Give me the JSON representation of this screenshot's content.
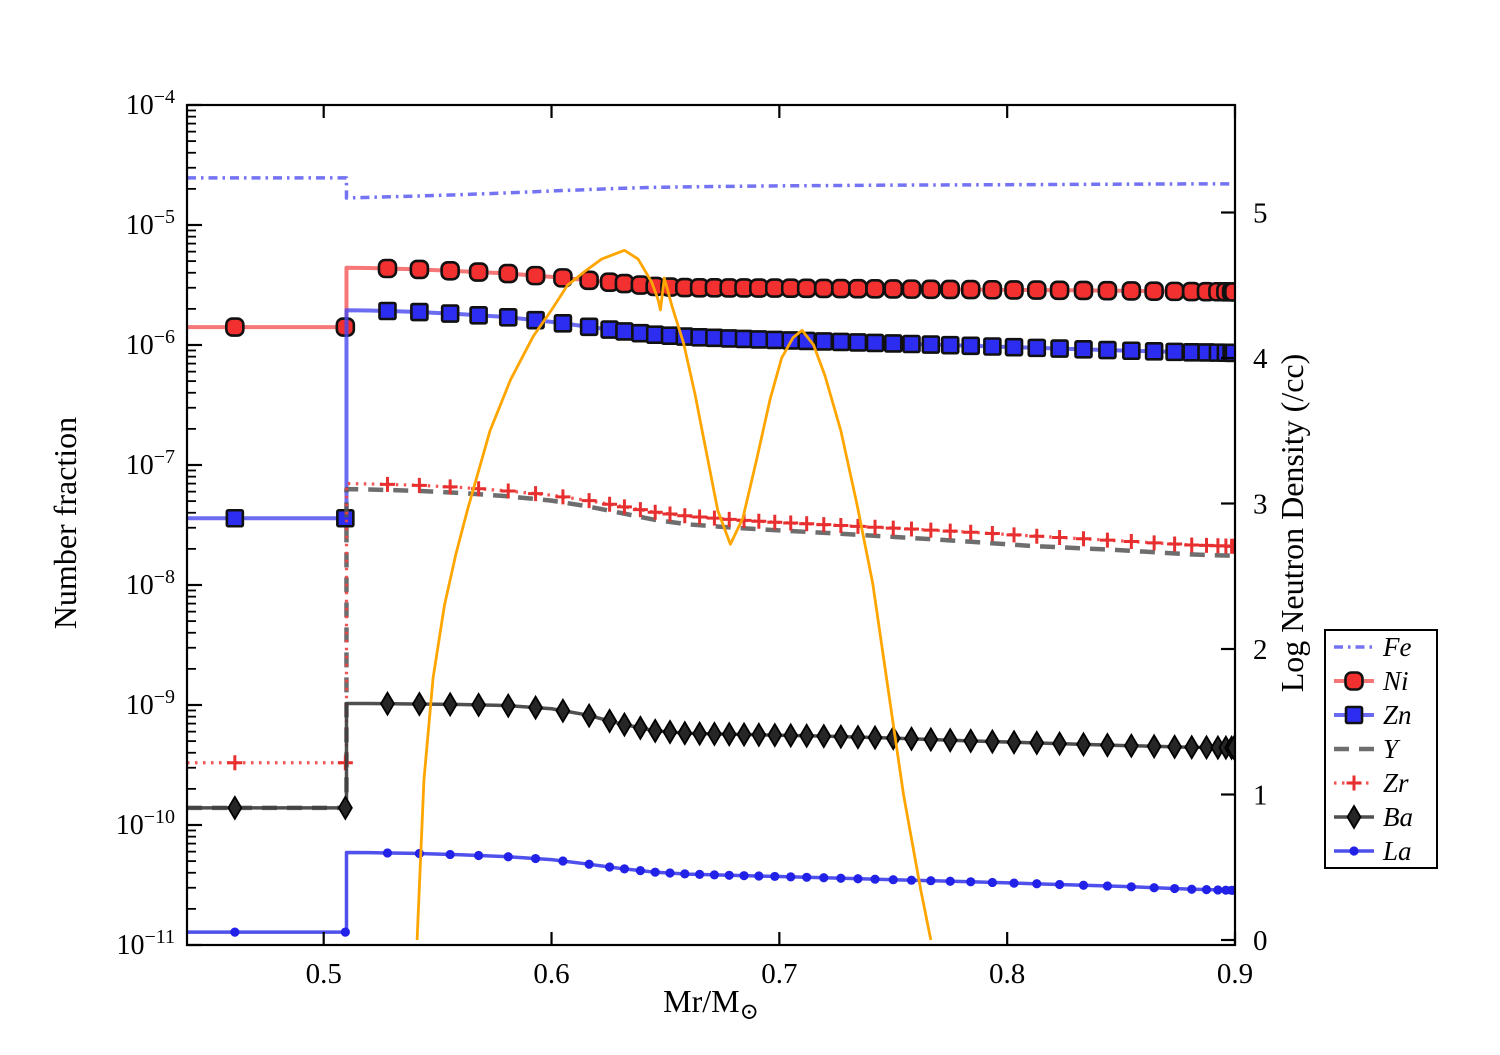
{
  "figure": {
    "background": "#ffffff"
  },
  "chart_data": {
    "type": "line",
    "title": "",
    "x_axis": {
      "label": "Mr/M⊙",
      "label_main": "Mr/M",
      "label_sub": "⊙",
      "min": 0.44,
      "max": 0.9,
      "ticks": [
        0.5,
        0.6,
        0.7,
        0.8,
        0.9
      ],
      "tick_labels": [
        "0.5",
        "0.6",
        "0.7",
        "0.8",
        "0.9"
      ],
      "color": "#1616d1"
    },
    "y_axis_left": {
      "label": "Number fraction",
      "scale": "log",
      "min": 1e-11,
      "max": 0.0001,
      "tick_exponents": [
        -4,
        -5,
        -6,
        -7,
        -8,
        -9,
        -10,
        -11
      ],
      "tick_base": "10",
      "color": "#1616d1"
    },
    "y_axis_right": {
      "label": "Log Neutron Density (/cc)",
      "min": 0,
      "max": 5.74,
      "ticks": [
        0,
        1,
        2,
        3,
        4,
        5
      ],
      "tick_labels": [
        "0",
        "1",
        "2",
        "3",
        "4",
        "5"
      ],
      "color": "#1616d1"
    },
    "grid": false,
    "legend_position": "right-outside",
    "marker_x": [
      0.461,
      0.5095,
      0.528,
      0.542,
      0.5555,
      0.568,
      0.581,
      0.593,
      0.605,
      0.6165,
      0.6255,
      0.632,
      0.639,
      0.6455,
      0.652,
      0.6585,
      0.665,
      0.6715,
      0.678,
      0.6845,
      0.691,
      0.698,
      0.705,
      0.712,
      0.7195,
      0.727,
      0.7345,
      0.742,
      0.75,
      0.758,
      0.7665,
      0.775,
      0.784,
      0.7935,
      0.803,
      0.813,
      0.823,
      0.8335,
      0.844,
      0.8545,
      0.8645,
      0.8735,
      0.881,
      0.8875,
      0.8925,
      0.896,
      0.8985,
      0.8995
    ],
    "series": [
      {
        "name": "Fe",
        "color": "#5b5bf2",
        "line": "dashdot",
        "width": 3.5,
        "marker": "none",
        "opacity": 0.85,
        "points": [
          [
            0.44,
            2.47e-05
          ],
          [
            0.51,
            2.47e-05
          ],
          [
            0.51,
            1.68e-05
          ],
          [
            0.52,
            1.7e-05
          ],
          [
            0.54,
            1.74e-05
          ],
          [
            0.56,
            1.79e-05
          ],
          [
            0.58,
            1.85e-05
          ],
          [
            0.6,
            1.92e-05
          ],
          [
            0.615,
            1.97e-05
          ],
          [
            0.63,
            2.02e-05
          ],
          [
            0.645,
            2.06e-05
          ],
          [
            0.66,
            2.08e-05
          ],
          [
            0.68,
            2.1e-05
          ],
          [
            0.7,
            2.12e-05
          ],
          [
            0.72,
            2.13e-05
          ],
          [
            0.75,
            2.15e-05
          ],
          [
            0.78,
            2.16e-05
          ],
          [
            0.81,
            2.17e-05
          ],
          [
            0.85,
            2.19e-05
          ],
          [
            0.88,
            2.2e-05
          ],
          [
            0.9,
            2.2e-05
          ]
        ]
      },
      {
        "name": "Ni",
        "color": "#f25555",
        "marker_fill": "#f33030",
        "marker_edge": "#111111",
        "line": "solid",
        "width": 4,
        "marker": "roundsquare",
        "opacity": 0.8,
        "points": [
          [
            0.44,
            1.41e-06
          ],
          [
            0.51,
            1.41e-06
          ],
          [
            0.51,
            4.4e-06
          ],
          [
            0.52,
            4.38e-06
          ],
          [
            0.54,
            4.28e-06
          ],
          [
            0.56,
            4.12e-06
          ],
          [
            0.58,
            3.95e-06
          ],
          [
            0.6,
            3.7e-06
          ],
          [
            0.615,
            3.48e-06
          ],
          [
            0.63,
            3.28e-06
          ],
          [
            0.645,
            3.08e-06
          ],
          [
            0.66,
            3e-06
          ],
          [
            0.68,
            2.99e-06
          ],
          [
            0.7,
            2.98e-06
          ],
          [
            0.72,
            2.96e-06
          ],
          [
            0.75,
            2.93e-06
          ],
          [
            0.78,
            2.9e-06
          ],
          [
            0.81,
            2.87e-06
          ],
          [
            0.85,
            2.83e-06
          ],
          [
            0.88,
            2.79e-06
          ],
          [
            0.9,
            2.77e-06
          ]
        ]
      },
      {
        "name": "Zn",
        "color": "#4747f0",
        "marker_fill": "#2d2df2",
        "marker_edge": "#111111",
        "line": "solid",
        "width": 4,
        "marker": "square",
        "opacity": 0.8,
        "points": [
          [
            0.44,
            3.6e-08
          ],
          [
            0.51,
            3.6e-08
          ],
          [
            0.51,
            1.95e-06
          ],
          [
            0.52,
            1.94e-06
          ],
          [
            0.54,
            1.89e-06
          ],
          [
            0.56,
            1.81e-06
          ],
          [
            0.58,
            1.71e-06
          ],
          [
            0.6,
            1.56e-06
          ],
          [
            0.615,
            1.43e-06
          ],
          [
            0.63,
            1.31e-06
          ],
          [
            0.645,
            1.22e-06
          ],
          [
            0.66,
            1.17e-06
          ],
          [
            0.68,
            1.13e-06
          ],
          [
            0.7,
            1.1e-06
          ],
          [
            0.72,
            1.07e-06
          ],
          [
            0.75,
            1.03e-06
          ],
          [
            0.78,
            9.9e-07
          ],
          [
            0.81,
            9.5e-07
          ],
          [
            0.85,
            9e-07
          ],
          [
            0.88,
            8.7e-07
          ],
          [
            0.9,
            8.6e-07
          ]
        ]
      },
      {
        "name": "Y",
        "color": "#555555",
        "line": "dashed",
        "width": 4.5,
        "marker": "none",
        "opacity": 0.85,
        "points": [
          [
            0.44,
            1.39e-10
          ],
          [
            0.51,
            1.39e-10
          ],
          [
            0.51,
            6.3e-08
          ],
          [
            0.52,
            6.25e-08
          ],
          [
            0.54,
            6.1e-08
          ],
          [
            0.56,
            5.85e-08
          ],
          [
            0.58,
            5.5e-08
          ],
          [
            0.6,
            5.05e-08
          ],
          [
            0.615,
            4.55e-08
          ],
          [
            0.63,
            4e-08
          ],
          [
            0.645,
            3.5e-08
          ],
          [
            0.66,
            3.2e-08
          ],
          [
            0.68,
            3e-08
          ],
          [
            0.7,
            2.85e-08
          ],
          [
            0.72,
            2.72e-08
          ],
          [
            0.75,
            2.52e-08
          ],
          [
            0.78,
            2.32e-08
          ],
          [
            0.81,
            2.12e-08
          ],
          [
            0.85,
            1.95e-08
          ],
          [
            0.88,
            1.8e-08
          ],
          [
            0.9,
            1.75e-08
          ]
        ]
      },
      {
        "name": "Zr",
        "color": "#f34141",
        "marker_fill": "#e82f2f",
        "line": "dotted",
        "width": 3.2,
        "marker": "plus",
        "opacity": 0.9,
        "points": [
          [
            0.44,
            3.3e-10
          ],
          [
            0.51,
            3.3e-10
          ],
          [
            0.51,
            7e-08
          ],
          [
            0.52,
            6.95e-08
          ],
          [
            0.54,
            6.8e-08
          ],
          [
            0.56,
            6.5e-08
          ],
          [
            0.58,
            6.1e-08
          ],
          [
            0.6,
            5.6e-08
          ],
          [
            0.615,
            5.1e-08
          ],
          [
            0.63,
            4.55e-08
          ],
          [
            0.645,
            4.05e-08
          ],
          [
            0.66,
            3.75e-08
          ],
          [
            0.68,
            3.5e-08
          ],
          [
            0.7,
            3.32e-08
          ],
          [
            0.72,
            3.18e-08
          ],
          [
            0.75,
            2.98e-08
          ],
          [
            0.78,
            2.78e-08
          ],
          [
            0.81,
            2.57e-08
          ],
          [
            0.85,
            2.33e-08
          ],
          [
            0.88,
            2.16e-08
          ],
          [
            0.9,
            2.1e-08
          ]
        ]
      },
      {
        "name": "Ba",
        "color": "#3c3c3c",
        "marker_fill": "#262626",
        "marker_edge": "#000000",
        "line": "solid",
        "width": 3.5,
        "marker": "diamond",
        "opacity": 0.9,
        "points": [
          [
            0.44,
            1.39e-10
          ],
          [
            0.51,
            1.39e-10
          ],
          [
            0.51,
            1.03e-09
          ],
          [
            0.52,
            1.03e-09
          ],
          [
            0.54,
            1.02e-09
          ],
          [
            0.56,
            1.01e-09
          ],
          [
            0.58,
            9.9e-10
          ],
          [
            0.6,
            9.3e-10
          ],
          [
            0.615,
            8.3e-10
          ],
          [
            0.63,
            7e-10
          ],
          [
            0.645,
            6.1e-10
          ],
          [
            0.66,
            5.8e-10
          ],
          [
            0.68,
            5.7e-10
          ],
          [
            0.7,
            5.6e-10
          ],
          [
            0.72,
            5.5e-10
          ],
          [
            0.75,
            5.3e-10
          ],
          [
            0.78,
            5.05e-10
          ],
          [
            0.81,
            4.85e-10
          ],
          [
            0.85,
            4.6e-10
          ],
          [
            0.88,
            4.45e-10
          ],
          [
            0.9,
            4.4e-10
          ]
        ]
      },
      {
        "name": "La",
        "color": "#3d3deb",
        "marker_fill": "#2121e8",
        "line": "solid",
        "width": 3.5,
        "marker": "dot",
        "opacity": 0.9,
        "points": [
          [
            0.44,
            1.28e-11
          ],
          [
            0.51,
            1.28e-11
          ],
          [
            0.51,
            5.9e-11
          ],
          [
            0.52,
            5.88e-11
          ],
          [
            0.54,
            5.8e-11
          ],
          [
            0.56,
            5.65e-11
          ],
          [
            0.58,
            5.45e-11
          ],
          [
            0.6,
            5.15e-11
          ],
          [
            0.615,
            4.75e-11
          ],
          [
            0.63,
            4.35e-11
          ],
          [
            0.645,
            4.05e-11
          ],
          [
            0.66,
            3.9e-11
          ],
          [
            0.68,
            3.8e-11
          ],
          [
            0.7,
            3.72e-11
          ],
          [
            0.72,
            3.63e-11
          ],
          [
            0.75,
            3.5e-11
          ],
          [
            0.78,
            3.38e-11
          ],
          [
            0.81,
            3.25e-11
          ],
          [
            0.85,
            3.08e-11
          ],
          [
            0.88,
            2.92e-11
          ],
          [
            0.9,
            2.85e-11
          ]
        ]
      }
    ],
    "neutron_density": {
      "name": "neutron-density",
      "axis": "right",
      "color": "#ffa500",
      "width": 2.8,
      "points": [
        [
          0.541,
          0
        ],
        [
          0.544,
          1.1
        ],
        [
          0.548,
          1.8
        ],
        [
          0.553,
          2.3
        ],
        [
          0.558,
          2.65
        ],
        [
          0.563,
          2.95
        ],
        [
          0.573,
          3.5
        ],
        [
          0.582,
          3.85
        ],
        [
          0.592,
          4.15
        ],
        [
          0.6,
          4.33
        ],
        [
          0.607,
          4.5
        ],
        [
          0.615,
          4.6
        ],
        [
          0.622,
          4.68
        ],
        [
          0.632,
          4.74
        ],
        [
          0.638,
          4.68
        ],
        [
          0.644,
          4.52
        ],
        [
          0.6468,
          4.4
        ],
        [
          0.6478,
          4.33
        ],
        [
          0.6495,
          4.55
        ],
        [
          0.653,
          4.35
        ],
        [
          0.658,
          4.1
        ],
        [
          0.663,
          3.75
        ],
        [
          0.668,
          3.35
        ],
        [
          0.673,
          2.95
        ],
        [
          0.6785,
          2.72
        ],
        [
          0.684,
          2.9
        ],
        [
          0.69,
          3.3
        ],
        [
          0.696,
          3.72
        ],
        [
          0.701,
          4.0
        ],
        [
          0.706,
          4.14
        ],
        [
          0.71,
          4.19
        ],
        [
          0.715,
          4.09
        ],
        [
          0.72,
          3.88
        ],
        [
          0.727,
          3.5
        ],
        [
          0.734,
          3.0
        ],
        [
          0.741,
          2.45
        ],
        [
          0.7475,
          1.75
        ],
        [
          0.7545,
          1.0
        ],
        [
          0.762,
          0.35
        ],
        [
          0.7665,
          0
        ]
      ]
    }
  },
  "legend": {
    "entries": [
      "Fe",
      "Ni",
      "Zn",
      "Y",
      "Zr",
      "Ba",
      "La"
    ],
    "border_color": "#000000",
    "background": "#ffffff"
  }
}
